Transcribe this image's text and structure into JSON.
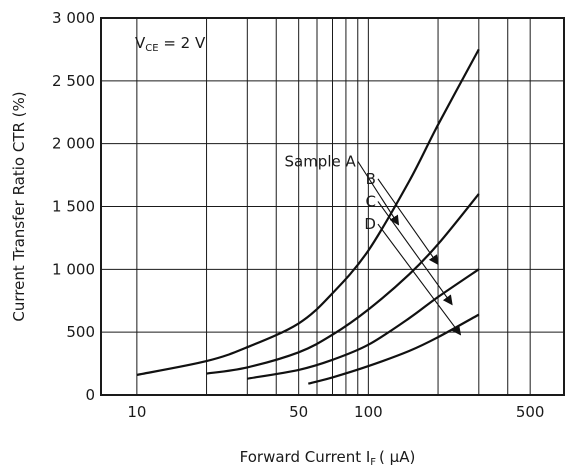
{
  "chart_data": {
    "type": "line",
    "xlabel": "Forward Current  I",
    "xlabel_sub": "F",
    "xlabel_unit": "( μA)",
    "ylabel": "Current Transfer Ratio  CTR (%)",
    "condition_main": "V",
    "condition_sub": "CE",
    "condition_rest": " = 2 V",
    "x_scale": "log",
    "xlim": [
      7,
      700
    ],
    "ylim": [
      0,
      3000
    ],
    "grid": true,
    "x_ticks": [
      {
        "value": 10,
        "label": "10"
      },
      {
        "value": 50,
        "label": "50"
      },
      {
        "value": 100,
        "label": "100"
      },
      {
        "value": 500,
        "label": "500"
      }
    ],
    "x_gridlines": [
      10,
      20,
      30,
      40,
      50,
      60,
      70,
      80,
      90,
      100,
      200,
      300,
      400,
      500
    ],
    "y_ticks": [
      {
        "value": 0,
        "label": "0"
      },
      {
        "value": 500,
        "label": "500"
      },
      {
        "value": 1000,
        "label": "1 000"
      },
      {
        "value": 1500,
        "label": "1 500"
      },
      {
        "value": 2000,
        "label": "2 000"
      },
      {
        "value": 2500,
        "label": "2 500"
      },
      {
        "value": 3000,
        "label": "3 000"
      }
    ],
    "series": [
      {
        "name": "Sample A",
        "x": [
          10,
          20,
          30,
          50,
          70,
          100,
          150,
          200,
          300
        ],
        "y": [
          160,
          270,
          380,
          570,
          810,
          1150,
          1700,
          2150,
          2750
        ]
      },
      {
        "name": "B",
        "x": [
          20,
          30,
          50,
          70,
          100,
          150,
          200,
          300
        ],
        "y": [
          170,
          220,
          340,
          480,
          680,
          960,
          1200,
          1600
        ]
      },
      {
        "name": "C",
        "x": [
          30,
          50,
          70,
          100,
          150,
          200,
          300
        ],
        "y": [
          130,
          200,
          280,
          400,
          610,
          780,
          1000
        ]
      },
      {
        "name": "D",
        "x": [
          55,
          70,
          100,
          150,
          200,
          300
        ],
        "y": [
          90,
          140,
          230,
          350,
          460,
          640
        ]
      }
    ],
    "annotations": [
      {
        "label": "Sample A",
        "series": "Sample A",
        "label_at": [
          90,
          1860
        ],
        "arrow_to": [
          135,
          1355
        ]
      },
      {
        "label": "B",
        "series": "B",
        "label_at": [
          110,
          1720
        ],
        "arrow_to": [
          200,
          1040
        ]
      },
      {
        "label": "C",
        "series": "C",
        "label_at": [
          110,
          1540
        ],
        "arrow_to": [
          230,
          720
        ]
      },
      {
        "label": "D",
        "series": "D",
        "label_at": [
          110,
          1360
        ],
        "arrow_to": [
          250,
          480
        ]
      }
    ]
  }
}
